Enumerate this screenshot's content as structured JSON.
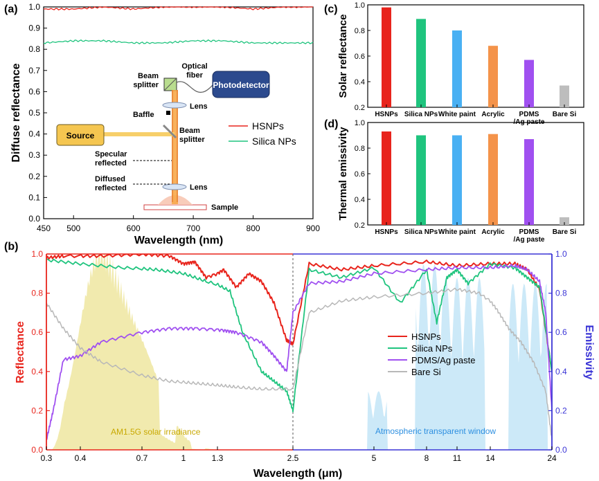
{
  "panel_labels": {
    "a": "(a)",
    "b": "(b)",
    "c": "(c)",
    "d": "(d)"
  },
  "colors": {
    "hsnps": "#e8241c",
    "silica": "#1fc47e",
    "pdms": "#a050f0",
    "bare": "#b8b8b8",
    "white_paint": "#49b0f3",
    "acrylic": "#f4934a",
    "bare_bar": "#bdbdbd",
    "left_axis": "#e8241c",
    "right_axis": "#3a34d6",
    "solar_fill": "#efe6a0",
    "atm_fill": "#bfe3f6",
    "photodetector": "#2c4a8e",
    "source": "#f5c650"
  },
  "chart_data": [
    {
      "id": "a",
      "type": "line",
      "xlabel": "Wavelength (nm)",
      "ylabel": "Diffuse reflectance",
      "xlim": [
        450,
        900
      ],
      "ylim": [
        0,
        1.0
      ],
      "xticks": [
        450,
        500,
        600,
        700,
        800,
        900
      ],
      "yticks": [
        0.0,
        0.1,
        0.2,
        0.3,
        0.4,
        0.5,
        0.6,
        0.7,
        0.8,
        0.9,
        1.0
      ],
      "series": [
        {
          "name": "HSNPs",
          "x": [
            450,
            500,
            550,
            600,
            650,
            700,
            750,
            800,
            850,
            900
          ],
          "values": [
            0.99,
            0.99,
            1.0,
            0.99,
            1.0,
            1.0,
            1.0,
            0.99,
            1.0,
            1.0
          ]
        },
        {
          "name": "Silica NPs",
          "x": [
            450,
            500,
            550,
            600,
            650,
            700,
            750,
            800,
            850,
            900
          ],
          "values": [
            0.83,
            0.84,
            0.84,
            0.83,
            0.83,
            0.84,
            0.84,
            0.83,
            0.83,
            0.83
          ]
        }
      ],
      "legend": "right",
      "setup_labels": {
        "beam_splitter_top": "Beam\nsplitter",
        "optical_fiber": "Optical\nfiber",
        "photodetector": "Photodetector",
        "lens_top": "Lens",
        "baffle": "Baffle",
        "source": "Source",
        "beam_splitter_mid": "Beam\nsplitter",
        "specular": "Specular\nreflected",
        "diffused": "Diffused\nreflected",
        "lens_bottom": "Lens",
        "sample": "Sample"
      }
    },
    {
      "id": "c",
      "type": "bar",
      "ylabel": "Solar reflectance",
      "ylim": [
        0.2,
        1.0
      ],
      "yticks": [
        0.2,
        0.4,
        0.6,
        0.8,
        1.0
      ],
      "categories": [
        "HSNPs",
        "Silica NPs",
        "White paint",
        "Acrylic",
        "PDMS\n/Ag paste",
        "Bare Si"
      ],
      "values": [
        0.98,
        0.89,
        0.8,
        0.68,
        0.57,
        0.37
      ]
    },
    {
      "id": "d",
      "type": "bar",
      "ylabel": "Thermal emissivity",
      "ylim": [
        0.2,
        1.0
      ],
      "yticks": [
        0.2,
        0.4,
        0.6,
        0.8,
        1.0
      ],
      "categories": [
        "HSNPs",
        "Silica NPs",
        "White paint",
        "Acrylic",
        "PDMS\n/Ag paste",
        "Bare Si"
      ],
      "values": [
        0.93,
        0.9,
        0.9,
        0.91,
        0.87,
        0.26
      ]
    },
    {
      "id": "b",
      "type": "line",
      "xlabel": "Wavelength (μm)",
      "ylabel_left": "Reflectance",
      "ylabel_right": "Emissivity",
      "ylim": [
        0,
        1.0
      ],
      "yticks": [
        0.0,
        0.2,
        0.4,
        0.6,
        0.8,
        1.0
      ],
      "xticks_left": [
        0.3,
        0.4,
        0.7,
        1.0,
        1.3,
        2.5
      ],
      "xticks_right": [
        2.5,
        5,
        8,
        11,
        14,
        24
      ],
      "region_labels": {
        "solar": "AM1.5G solar irradiance",
        "atm": "Atmospheric transparent window"
      },
      "series": [
        {
          "name": "HSNPs",
          "x": [
            0.3,
            0.35,
            0.5,
            0.7,
            0.9,
            1.0,
            1.1,
            1.2,
            1.4,
            1.6,
            1.8,
            2.0,
            2.2,
            2.4,
            2.5,
            3.0,
            4.0,
            5.0,
            8.0,
            11.0,
            14.0,
            18.0,
            20.0,
            22.0,
            24.0
          ],
          "values": [
            0.98,
            0.99,
            0.99,
            1.0,
            0.99,
            0.95,
            0.96,
            0.88,
            0.92,
            0.83,
            0.9,
            0.86,
            0.75,
            0.56,
            0.54,
            0.95,
            0.92,
            0.94,
            0.96,
            0.94,
            0.95,
            0.95,
            0.92,
            0.82,
            0.4
          ]
        },
        {
          "name": "Silica NPs",
          "x": [
            0.3,
            0.4,
            0.6,
            0.8,
            1.0,
            1.2,
            1.5,
            1.7,
            2.0,
            2.2,
            2.4,
            2.5,
            3.0,
            4.0,
            5.0,
            6.5,
            8.0,
            9.0,
            10.0,
            11.0,
            12.0,
            14.0,
            18.0,
            20.0,
            22.0,
            24.0
          ],
          "values": [
            0.97,
            0.95,
            0.93,
            0.92,
            0.9,
            0.86,
            0.81,
            0.6,
            0.4,
            0.35,
            0.3,
            0.2,
            0.92,
            0.88,
            0.93,
            0.75,
            0.92,
            0.65,
            0.88,
            0.92,
            0.85,
            0.95,
            0.93,
            0.88,
            0.83,
            0.4
          ]
        },
        {
          "name": "PDMS/Ag paste",
          "x": [
            0.3,
            0.32,
            0.35,
            0.4,
            0.5,
            0.7,
            0.9,
            1.1,
            1.4,
            1.6,
            2.0,
            2.2,
            2.4,
            2.5,
            3.0,
            4.0,
            5.0,
            8.0,
            11.0,
            14.0,
            18.0,
            20.0,
            22.0,
            23.0,
            24.0
          ],
          "values": [
            0.05,
            0.2,
            0.46,
            0.48,
            0.55,
            0.6,
            0.62,
            0.62,
            0.61,
            0.6,
            0.55,
            0.48,
            0.4,
            0.7,
            0.85,
            0.86,
            0.9,
            0.92,
            0.93,
            0.93,
            0.94,
            0.92,
            0.86,
            0.7,
            0.2
          ]
        },
        {
          "name": "Bare Si",
          "x": [
            0.3,
            0.35,
            0.4,
            0.5,
            0.7,
            0.9,
            1.1,
            1.3,
            1.6,
            2.0,
            2.5,
            3.0,
            4.0,
            5.0,
            8.0,
            11.0,
            13.0,
            15.0,
            17.0,
            19.0,
            21.0,
            23.0,
            24.0
          ],
          "values": [
            0.75,
            0.62,
            0.52,
            0.45,
            0.38,
            0.35,
            0.34,
            0.33,
            0.32,
            0.31,
            0.31,
            0.7,
            0.76,
            0.78,
            0.8,
            0.82,
            0.8,
            0.72,
            0.62,
            0.55,
            0.45,
            0.3,
            0.05
          ]
        }
      ],
      "legend": "right"
    }
  ]
}
